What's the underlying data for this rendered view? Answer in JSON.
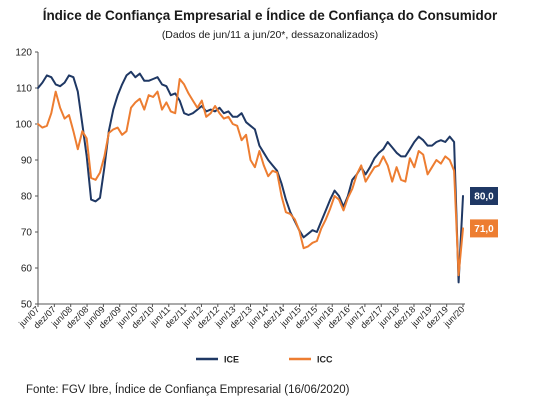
{
  "chart_data": {
    "type": "line",
    "title": "Índice de Confiança Empresarial e Índice de Confiança do Consumidor",
    "subtitle": "(Dados de jun/11 a jun/20*, dessazonalizados)",
    "xlabel": "",
    "ylabel": "",
    "ylim": [
      50,
      120
    ],
    "yticks": [
      50,
      60,
      70,
      80,
      90,
      100,
      110,
      120
    ],
    "xticks": [
      "jun/07",
      "dez/07",
      "jun/08",
      "dez/08",
      "jun/09",
      "dez/09",
      "jun/10",
      "dez/10",
      "jun/11",
      "dez/11",
      "jun/12",
      "dez/12",
      "jun/13",
      "dez/13",
      "jun/14",
      "dez/14",
      "jun/15",
      "dez/15",
      "jun/16",
      "dez/16",
      "jun/17",
      "dez/17",
      "jun/18",
      "dez/18",
      "jun/19",
      "dez/19",
      "jun/20"
    ],
    "grid": false,
    "legend_position": "bottom",
    "colors": {
      "ICE": "#1f3864",
      "ICC": "#ed7d31"
    },
    "series": [
      {
        "name": "ICE",
        "values": [
          110.0,
          111.5,
          113.5,
          113.0,
          111.0,
          110.5,
          111.5,
          113.5,
          113.0,
          109.0,
          100.0,
          91.0,
          79.0,
          78.5,
          79.5,
          88.0,
          98.0,
          104.0,
          108.0,
          111.0,
          113.5,
          114.5,
          113.0,
          114.0,
          112.0,
          112.0,
          112.5,
          113.0,
          111.0,
          110.5,
          108.0,
          108.5,
          106.5,
          103.0,
          102.5,
          103.0,
          104.0,
          105.0,
          103.5,
          104.0,
          103.5,
          104.5,
          103.0,
          103.5,
          102.0,
          102.0,
          103.0,
          100.5,
          99.5,
          98.5,
          94.0,
          92.0,
          90.0,
          88.5,
          87.0,
          83.5,
          79.0,
          75.5,
          73.0,
          70.5,
          68.5,
          69.5,
          70.5,
          70.0,
          73.0,
          76.0,
          79.0,
          81.5,
          80.0,
          77.0,
          80.0,
          84.5,
          86.0,
          88.0,
          86.0,
          88.0,
          90.5,
          92.0,
          93.0,
          95.0,
          93.5,
          92.0,
          91.0,
          91.0,
          93.0,
          95.0,
          96.5,
          95.5,
          94.0,
          94.0,
          95.0,
          95.5,
          95.0,
          96.5,
          95.0,
          56.0,
          80.0
        ]
      },
      {
        "name": "ICC",
        "values": [
          100.0,
          99.0,
          99.5,
          103.0,
          109.0,
          104.5,
          101.5,
          102.5,
          98.0,
          93.0,
          98.0,
          96.0,
          85.0,
          84.5,
          86.5,
          91.0,
          97.5,
          98.5,
          99.0,
          97.0,
          98.0,
          104.5,
          106.0,
          107.0,
          104.0,
          108.0,
          107.5,
          109.0,
          104.0,
          106.0,
          103.5,
          103.0,
          112.5,
          111.0,
          108.5,
          106.5,
          104.5,
          106.5,
          102.0,
          103.0,
          105.0,
          103.0,
          101.5,
          102.0,
          100.0,
          99.5,
          95.5,
          97.0,
          90.0,
          88.0,
          92.5,
          88.5,
          85.5,
          87.0,
          86.5,
          80.0,
          75.5,
          75.0,
          73.5,
          70.5,
          65.5,
          66.0,
          67.0,
          67.5,
          71.0,
          73.5,
          76.5,
          80.0,
          79.0,
          76.0,
          79.5,
          82.0,
          86.0,
          88.5,
          84.0,
          86.0,
          88.0,
          88.5,
          91.0,
          88.5,
          84.0,
          88.0,
          84.5,
          84.0,
          90.5,
          88.0,
          92.5,
          91.5,
          86.0,
          88.0,
          90.0,
          89.0,
          91.0,
          90.0,
          87.0,
          58.0,
          71.0
        ]
      }
    ],
    "end_labels": {
      "ICE": "80,0",
      "ICC": "71,0"
    }
  },
  "source": "Fonte: FGV Ibre, Índice de Confiança Empresarial (16/06/2020)"
}
